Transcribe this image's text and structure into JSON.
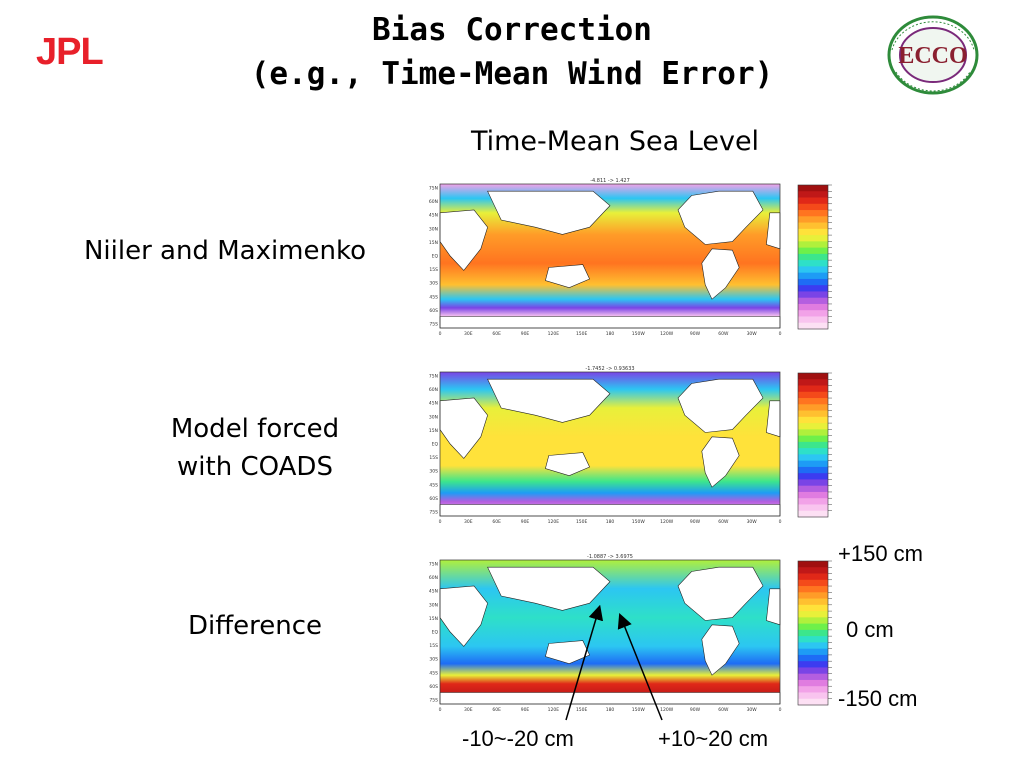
{
  "header": {
    "logo_left": "JPL",
    "title_line1": "Bias Correction",
    "title_line2": "(e.g., Time-Mean Wind Error)",
    "logo_right": "ECCO"
  },
  "subhead": "Time-Mean Sea Level",
  "rows": [
    {
      "label": "Niiler and Maximenko",
      "range_text": "-4.811 -> 1.427"
    },
    {
      "label": "Model forced\nwith COADS",
      "range_text": "-1.7452 -> 0.93633"
    },
    {
      "label": "Difference",
      "range_text": "-1.0887 -> 3.6975"
    }
  ],
  "map_axis": {
    "lat_ticks": [
      "75N",
      "60N",
      "45N",
      "30N",
      "15N",
      "EQ",
      "15S",
      "30S",
      "45S",
      "60S",
      "75S"
    ],
    "lon_ticks": [
      "0",
      "30E",
      "60E",
      "90E",
      "120E",
      "150E",
      "180",
      "150W",
      "120W",
      "90W",
      "60W",
      "30W",
      "0"
    ]
  },
  "colorbar": {
    "colors": [
      "#fde0f4",
      "#f9c4ef",
      "#f2a2e8",
      "#e07ce0",
      "#b45ee0",
      "#7a44e6",
      "#3c3cf0",
      "#1e6cf5",
      "#1e9cf5",
      "#2cc6f2",
      "#2ee0c8",
      "#3ce68c",
      "#6ef04a",
      "#b0f03c",
      "#e8f03a",
      "#ffe23a",
      "#ffc030",
      "#ff9c28",
      "#ff7420",
      "#f44a1a",
      "#e02818",
      "#c01818",
      "#a01010"
    ]
  },
  "annotations": {
    "top": "+150 cm",
    "mid": "0 cm",
    "bottom": "-150 cm",
    "neg_region": "-10~-20 cm",
    "pos_region": "+10~20 cm"
  }
}
